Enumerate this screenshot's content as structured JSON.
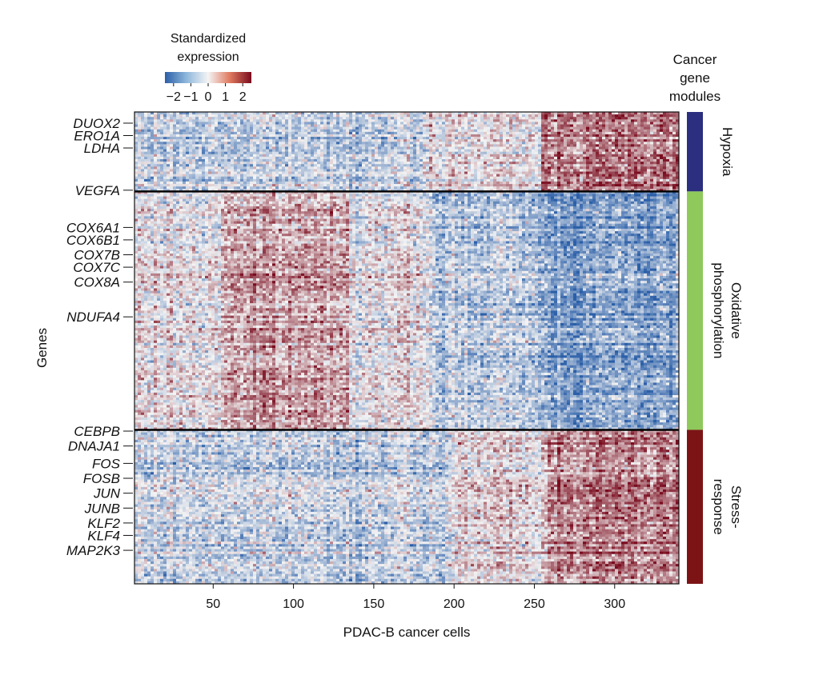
{
  "chart_data": {
    "type": "heatmap",
    "xlabel": "PDAC-B cancer cells",
    "ylabel": "Genes",
    "x_range": [
      1,
      340
    ],
    "x_ticks": [
      50,
      100,
      150,
      200,
      250,
      300
    ],
    "n_rows": 190,
    "colorbar": {
      "title_line1": "Standardized",
      "title_line2": "expression",
      "range": [
        -2.5,
        2.5
      ],
      "ticks": [
        -2,
        -1,
        0,
        1,
        2
      ],
      "tick_labels": [
        "−2",
        "−1",
        "0",
        "1",
        "2"
      ],
      "colors": {
        "low": "#2b5fa8",
        "mid": "#f4f4f4",
        "high": "#7a0c1e"
      }
    },
    "modules_title": [
      "Cancer",
      "gene",
      "modules"
    ],
    "modules": [
      {
        "name": "Hypoxia",
        "label_lines": [
          "Hypoxia"
        ],
        "rows": [
          0,
          32
        ],
        "color": "#2c2e7f"
      },
      {
        "name": "Oxidative phosphorylation",
        "label_lines": [
          "Oxidative",
          "phosphorylation"
        ],
        "rows": [
          32,
          128
        ],
        "color": "#8fc95b"
      },
      {
        "name": "Stress-response",
        "label_lines": [
          "Stress-",
          "response"
        ],
        "rows": [
          128,
          190
        ],
        "color": "#7c1416"
      }
    ],
    "gene_labels": [
      {
        "gene": "DUOX2",
        "row": 4
      },
      {
        "gene": "ERO1A",
        "row": 9
      },
      {
        "gene": "LDHA",
        "row": 14
      },
      {
        "gene": "VEGFA",
        "row": 31
      },
      {
        "gene": "COX6A1",
        "row": 46
      },
      {
        "gene": "COX6B1",
        "row": 51
      },
      {
        "gene": "COX7B",
        "row": 57
      },
      {
        "gene": "COX7C",
        "row": 62
      },
      {
        "gene": "COX8A",
        "row": 68
      },
      {
        "gene": "NDUFA4",
        "row": 82
      },
      {
        "gene": "CEBPB",
        "row": 128
      },
      {
        "gene": "DNAJA1",
        "row": 134
      },
      {
        "gene": "FOS",
        "row": 141
      },
      {
        "gene": "FOSB",
        "row": 147
      },
      {
        "gene": "JUN",
        "row": 153
      },
      {
        "gene": "JUNB",
        "row": 159
      },
      {
        "gene": "KLF2",
        "row": 165
      },
      {
        "gene": "KLF4",
        "row": 170
      },
      {
        "gene": "MAP2K3",
        "row": 176
      }
    ],
    "pattern_note": "Hypoxia module high in cells ~255-340; oxidative phosphorylation high in cells ~50-130 and low in ~260-340; stress-response high in cells ~260-340"
  }
}
